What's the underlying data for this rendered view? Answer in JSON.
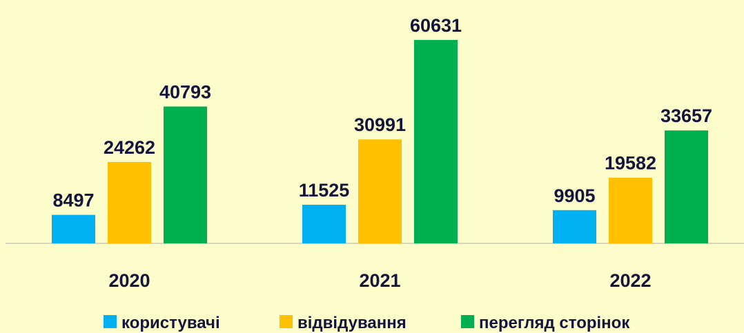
{
  "chart_data": {
    "type": "bar",
    "categories": [
      "2020",
      "2021",
      "2022"
    ],
    "series": [
      {
        "name": "користувачі",
        "color": "#00b0f0",
        "values": [
          8497,
          11525,
          9905
        ]
      },
      {
        "name": "відвідування",
        "color": "#ffc000",
        "values": [
          24262,
          30991,
          19582
        ]
      },
      {
        "name": "перегляд сторінок",
        "color": "#00b050",
        "values": [
          40793,
          60631,
          33657
        ]
      }
    ],
    "ylim": [
      0,
      70000
    ],
    "legend": "bottom"
  }
}
